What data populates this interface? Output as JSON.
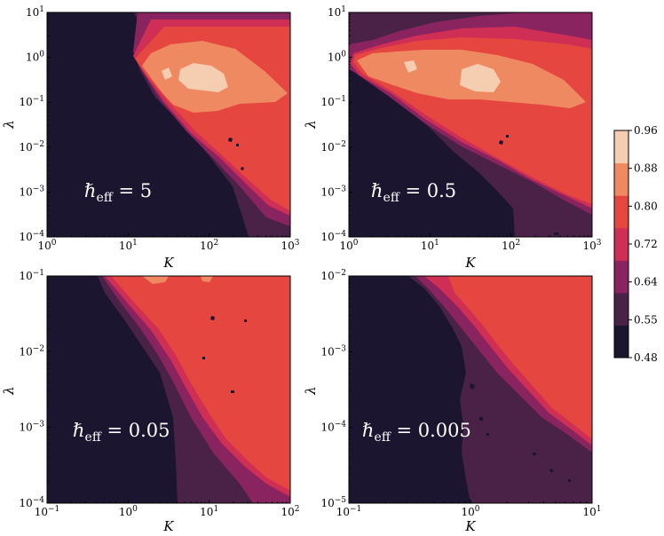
{
  "chart_data": [
    {
      "type": "heatmap",
      "xlabel": "K",
      "ylabel": "λ",
      "xscale": "log",
      "yscale": "log",
      "xlim": [
        1,
        1000
      ],
      "ylim": [
        0.0001,
        10
      ],
      "xticks": [
        {
          "base": "10",
          "exp": "0"
        },
        {
          "base": "10",
          "exp": "1"
        },
        {
          "base": "10",
          "exp": "2"
        },
        {
          "base": "10",
          "exp": "3"
        }
      ],
      "yticks": [
        {
          "base": "10",
          "exp": "−4"
        },
        {
          "base": "10",
          "exp": "−3"
        },
        {
          "base": "10",
          "exp": "−2"
        },
        {
          "base": "10",
          "exp": "−1"
        },
        {
          "base": "10",
          "exp": "0"
        },
        {
          "base": "10",
          "exp": "1"
        }
      ],
      "annotation": {
        "prefix": "ℏ",
        "sub": "eff",
        "value": " = 5"
      }
    },
    {
      "type": "heatmap",
      "xlabel": "K",
      "ylabel": "λ",
      "xscale": "log",
      "yscale": "log",
      "xlim": [
        1,
        1000
      ],
      "ylim": [
        0.0001,
        10
      ],
      "xticks": [
        {
          "base": "10",
          "exp": "0"
        },
        {
          "base": "10",
          "exp": "1"
        },
        {
          "base": "10",
          "exp": "2"
        },
        {
          "base": "10",
          "exp": "3"
        }
      ],
      "yticks": [
        {
          "base": "10",
          "exp": "−4"
        },
        {
          "base": "10",
          "exp": "−3"
        },
        {
          "base": "10",
          "exp": "−2"
        },
        {
          "base": "10",
          "exp": "−1"
        },
        {
          "base": "10",
          "exp": "0"
        },
        {
          "base": "10",
          "exp": "1"
        }
      ],
      "annotation": {
        "prefix": "ℏ",
        "sub": "eff",
        "value": " = 0.5"
      }
    },
    {
      "type": "heatmap",
      "xlabel": "K",
      "ylabel": "λ",
      "xscale": "log",
      "yscale": "log",
      "xlim": [
        0.1,
        100
      ],
      "ylim": [
        0.0001,
        0.1
      ],
      "xticks": [
        {
          "base": "10",
          "exp": "−1"
        },
        {
          "base": "10",
          "exp": "0"
        },
        {
          "base": "10",
          "exp": "1"
        },
        {
          "base": "10",
          "exp": "2"
        }
      ],
      "yticks": [
        {
          "base": "10",
          "exp": "−4"
        },
        {
          "base": "10",
          "exp": "−3"
        },
        {
          "base": "10",
          "exp": "−2"
        },
        {
          "base": "10",
          "exp": "−1"
        }
      ],
      "annotation": {
        "prefix": "ℏ",
        "sub": "eff",
        "value": " = 0.05"
      }
    },
    {
      "type": "heatmap",
      "xlabel": "K",
      "ylabel": "λ",
      "xscale": "log",
      "yscale": "log",
      "xlim": [
        0.1,
        10
      ],
      "ylim": [
        1e-05,
        0.01
      ],
      "xticks": [
        {
          "base": "10",
          "exp": "−1"
        },
        {
          "base": "10",
          "exp": "0"
        },
        {
          "base": "10",
          "exp": "1"
        }
      ],
      "yticks": [
        {
          "base": "10",
          "exp": "−5"
        },
        {
          "base": "10",
          "exp": "−4"
        },
        {
          "base": "10",
          "exp": "−3"
        },
        {
          "base": "10",
          "exp": "−2"
        }
      ],
      "annotation": {
        "prefix": "ℏ",
        "sub": "eff",
        "value": " = 0.005"
      }
    }
  ],
  "colorbar": {
    "levels": [
      0.48,
      0.55,
      0.64,
      0.72,
      0.8,
      0.88,
      0.96
    ],
    "labels": [
      "0.48",
      "0.55",
      "0.64",
      "0.72",
      "0.80",
      "0.88",
      "0.96"
    ],
    "colors": [
      "#1c1530",
      "#4a2248",
      "#8a2460",
      "#cf2e55",
      "#e5463f",
      "#ef8962",
      "#f5cdb0"
    ]
  }
}
